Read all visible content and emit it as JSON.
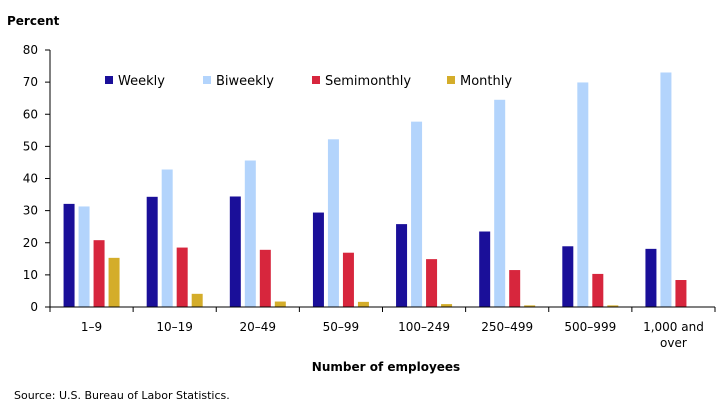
{
  "chart_data": {
    "type": "bar",
    "ylabel": "Percent",
    "xlabel": "Number of employees",
    "ylim": [
      0,
      80
    ],
    "yticks": [
      0,
      10,
      20,
      30,
      40,
      50,
      60,
      70,
      80
    ],
    "grid": false,
    "legend_position": "top",
    "categories": [
      [
        "1–9"
      ],
      [
        "10–19"
      ],
      [
        "20–49"
      ],
      [
        "50–99"
      ],
      [
        "100–249"
      ],
      [
        "250–499"
      ],
      [
        "500–999"
      ],
      [
        "1,000 and",
        "over"
      ]
    ],
    "series": [
      {
        "name": "Weekly",
        "color": "#1a0f99",
        "values": [
          32.1,
          34.3,
          34.4,
          29.4,
          25.8,
          23.5,
          18.9,
          18.1
        ]
      },
      {
        "name": "Biweekly",
        "color": "#b3d4fc",
        "values": [
          31.3,
          42.8,
          45.6,
          52.2,
          57.7,
          64.5,
          69.9,
          73.0
        ]
      },
      {
        "name": "Semimonthly",
        "color": "#d7263d",
        "values": [
          20.8,
          18.5,
          17.8,
          16.9,
          14.9,
          11.5,
          10.3,
          8.4
        ]
      },
      {
        "name": "Monthly",
        "color": "#d4ad2a",
        "values": [
          15.3,
          4.1,
          1.7,
          1.6,
          0.9,
          0.5,
          0.5,
          0.0
        ]
      }
    ]
  },
  "source": "Source: U.S. Bureau of Labor Statistics."
}
